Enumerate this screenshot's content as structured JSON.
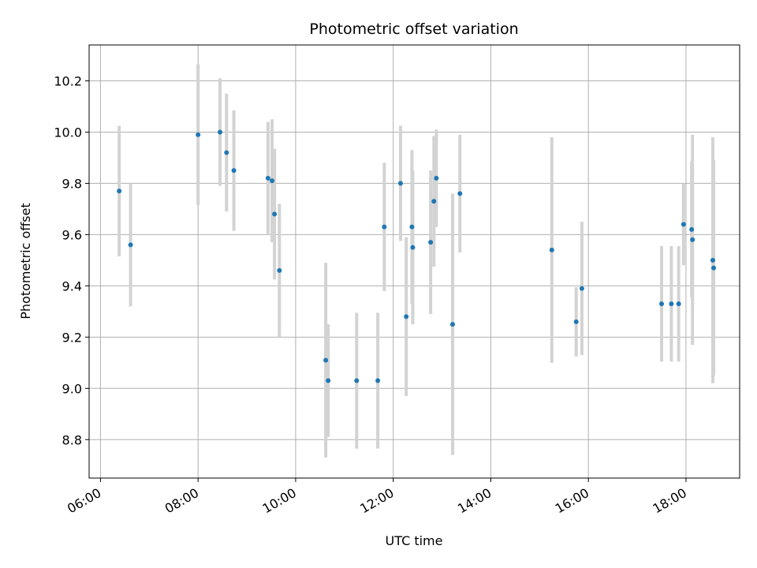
{
  "chart_data": {
    "type": "scatter",
    "title": "Photometric offset variation",
    "xlabel": "UTC time",
    "ylabel": "Photometric offset",
    "x_axis_type": "time",
    "xlim": [
      "05:46",
      "19:06"
    ],
    "ylim": [
      8.65,
      10.34
    ],
    "x_ticks": [
      "06:00",
      "08:00",
      "10:00",
      "12:00",
      "14:00",
      "16:00",
      "18:00"
    ],
    "y_ticks": [
      "8.8",
      "9.0",
      "9.2",
      "9.4",
      "9.6",
      "9.8",
      "10.0",
      "10.2"
    ],
    "grid": true,
    "marker_color": "#1f77b4",
    "errorbar_color": "#d3d3d3",
    "points": [
      {
        "x": "06:23",
        "y": 9.77,
        "yerr": 0.255
      },
      {
        "x": "06:37",
        "y": 9.56,
        "yerr": 0.24
      },
      {
        "x": "08:00",
        "y": 9.99,
        "yerr": 0.275
      },
      {
        "x": "08:27",
        "y": 10.0,
        "yerr": 0.21
      },
      {
        "x": "08:35",
        "y": 9.92,
        "yerr": 0.23
      },
      {
        "x": "08:44",
        "y": 9.85,
        "yerr": 0.235
      },
      {
        "x": "09:26",
        "y": 9.82,
        "yerr": 0.22
      },
      {
        "x": "09:31",
        "y": 9.81,
        "yerr": 0.24
      },
      {
        "x": "09:34",
        "y": 9.68,
        "yerr": 0.255
      },
      {
        "x": "09:40",
        "y": 9.46,
        "yerr": 0.26
      },
      {
        "x": "10:37",
        "y": 9.11,
        "yerr": 0.38
      },
      {
        "x": "10:40",
        "y": 9.03,
        "yerr": 0.22
      },
      {
        "x": "11:15",
        "y": 9.03,
        "yerr": 0.265
      },
      {
        "x": "11:41",
        "y": 9.03,
        "yerr": 0.265
      },
      {
        "x": "11:49",
        "y": 9.63,
        "yerr": 0.25
      },
      {
        "x": "12:09",
        "y": 9.8,
        "yerr": 0.225
      },
      {
        "x": "12:16",
        "y": 9.28,
        "yerr": 0.31
      },
      {
        "x": "12:23",
        "y": 9.63,
        "yerr": 0.3
      },
      {
        "x": "12:24",
        "y": 9.55,
        "yerr": 0.3
      },
      {
        "x": "12:46",
        "y": 9.57,
        "yerr": 0.28
      },
      {
        "x": "12:50",
        "y": 9.73,
        "yerr": 0.255
      },
      {
        "x": "12:53",
        "y": 9.82,
        "yerr": 0.19
      },
      {
        "x": "13:13",
        "y": 9.25,
        "yerr": 0.51
      },
      {
        "x": "13:22",
        "y": 9.76,
        "yerr": 0.23
      },
      {
        "x": "15:15",
        "y": 9.54,
        "yerr": 0.44
      },
      {
        "x": "15:45",
        "y": 9.26,
        "yerr": 0.135
      },
      {
        "x": "15:52",
        "y": 9.39,
        "yerr": 0.26
      },
      {
        "x": "17:30",
        "y": 9.33,
        "yerr": 0.225
      },
      {
        "x": "17:42",
        "y": 9.33,
        "yerr": 0.225
      },
      {
        "x": "17:51",
        "y": 9.33,
        "yerr": 0.225
      },
      {
        "x": "17:57",
        "y": 9.64,
        "yerr": 0.16
      },
      {
        "x": "18:07",
        "y": 9.62,
        "yerr": 0.265
      },
      {
        "x": "18:08",
        "y": 9.58,
        "yerr": 0.41
      },
      {
        "x": "18:33",
        "y": 9.5,
        "yerr": 0.48
      },
      {
        "x": "18:34",
        "y": 9.47,
        "yerr": 0.42
      }
    ]
  }
}
